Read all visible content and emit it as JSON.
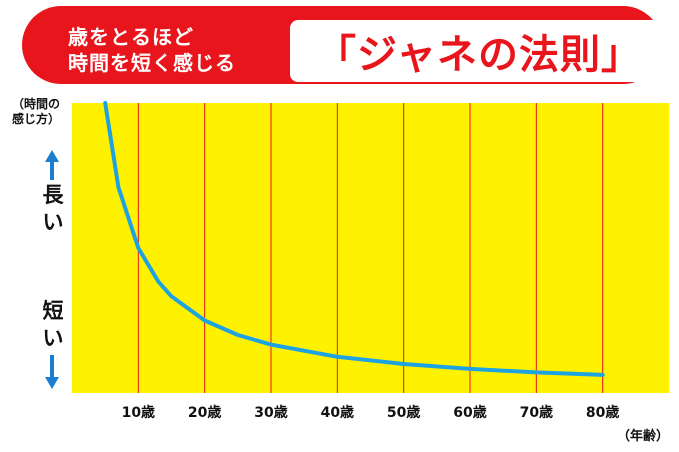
{
  "header": {
    "subtitle_line1": "歳をとるほど",
    "subtitle_line2": "時間を短く感じる",
    "title": "「ジャネの法則」"
  },
  "y_axis": {
    "label_line1": "（時間の",
    "label_line2": "感じ方）",
    "long_chars": [
      "長",
      "い"
    ],
    "short_chars": [
      "短",
      "い"
    ],
    "arrow_color": "#1a7fd0"
  },
  "colors": {
    "banner": "#e8161c",
    "plot_background": "#fff200",
    "gridline": "#e8161c",
    "curve": "#1ea3e2"
  },
  "chart_data": {
    "type": "line",
    "title": "歳をとるほど 時間を短く感じる「ジャネの法則」",
    "xlabel": "（年齢）",
    "ylabel": "（時間の感じ方）",
    "x_ticks": [
      "10歳",
      "20歳",
      "30歳",
      "40歳",
      "50歳",
      "60歳",
      "70歳",
      "80歳"
    ],
    "x_tick_values": [
      10,
      20,
      30,
      40,
      50,
      60,
      70,
      80
    ],
    "xlim": [
      0,
      90
    ],
    "ylim": [
      0,
      1
    ],
    "grid": "vertical",
    "series": [
      {
        "x": [
          5,
          7,
          10,
          13,
          15,
          20,
          25,
          30,
          40,
          50,
          60,
          70,
          80
        ],
        "values": [
          1.0,
          0.71,
          0.5,
          0.385,
          0.333,
          0.25,
          0.2,
          0.167,
          0.125,
          0.1,
          0.083,
          0.071,
          0.0625
        ]
      }
    ]
  }
}
